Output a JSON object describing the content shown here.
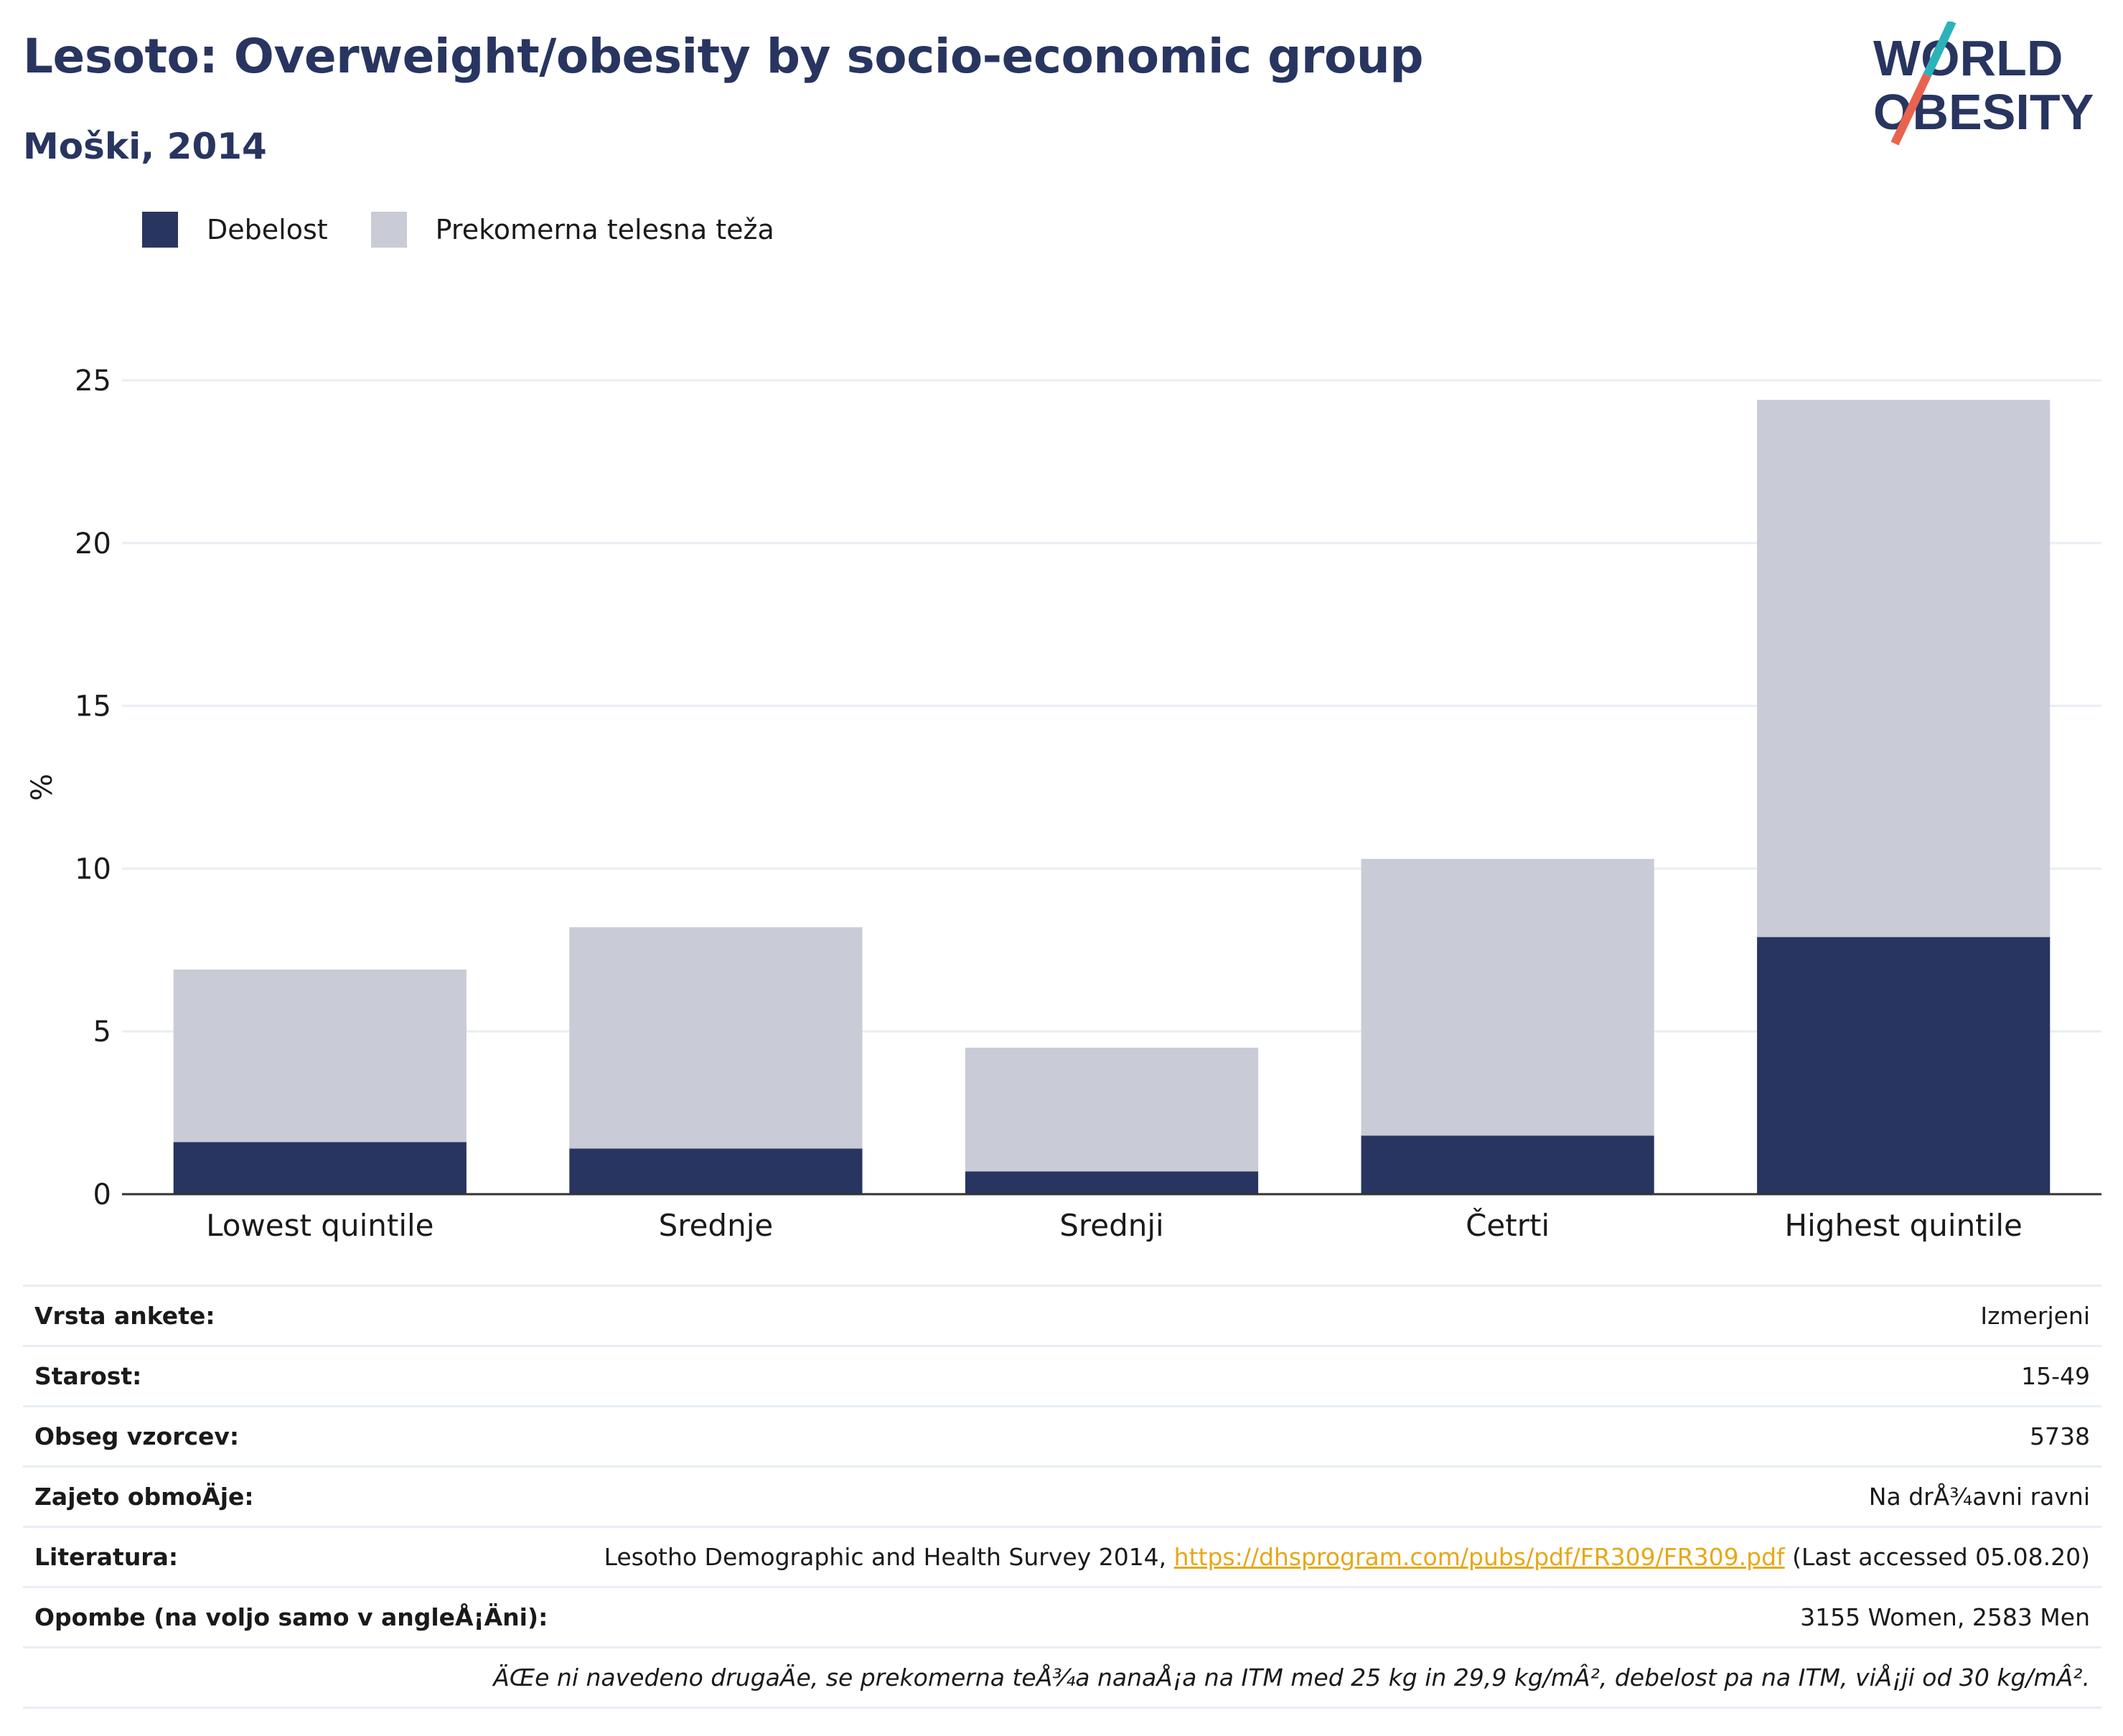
{
  "title": "Lesoto: Overweight/obesity by socio-economic group",
  "subtitle": "Moški, 2014",
  "logo": {
    "line1": "WORLD",
    "line2": "OBESITY",
    "accent_teal": "#2bb3b9",
    "accent_red": "#e8634e"
  },
  "colors": {
    "obesity": "#283560",
    "overweight": "#c9cbd6",
    "text_dark": "#283560",
    "link": "#e6a817"
  },
  "chart_data": {
    "type": "bar",
    "stacked": true,
    "categories": [
      "Lowest quintile",
      "Srednje",
      "Srednji",
      "Četrti",
      "Highest quintile"
    ],
    "series": [
      {
        "name": "Debelost",
        "values": [
          1.6,
          1.4,
          0.7,
          1.8,
          7.9
        ],
        "color": "#283560"
      },
      {
        "name": "Prekomerna telesna teža",
        "values": [
          5.3,
          6.8,
          3.8,
          8.5,
          16.5
        ],
        "color": "#c9cbd6"
      }
    ],
    "ylabel": "%",
    "ylim": [
      0,
      25
    ],
    "yticks": [
      0,
      5,
      10,
      15,
      20,
      25
    ],
    "grid": true,
    "legend": "top-left"
  },
  "meta": {
    "survey_label": "Vrsta ankete:",
    "survey_value": "Izmerjeni",
    "age_label": "Starost:",
    "age_value": "15-49",
    "sample_label": "Obseg vzorcev:",
    "sample_value": "5738",
    "area_label": "Zajeto obmoÄje:",
    "area_value": "Na drÅ¾avni ravni",
    "ref_label": "Literatura:",
    "ref_text": "Lesotho Demographic and Health Survey 2014, ",
    "ref_link": "https://dhsprogram.com/pubs/pdf/FR309/FR309.pdf",
    "ref_tail": " (Last accessed 05.08.20)",
    "notes_label": "Opombe (na voljo samo v angleÅ¡Äni):",
    "notes_value": "3155 Women, 2583 Men",
    "footnote": "ÄŒe ni navedeno drugaÄe, se prekomerna teÅ¾a nanaÅ¡a na ITM med 25 kg in 29,9 kg/mÂ², debelost pa na ITM, viÅ¡ji od 30 kg/mÂ²."
  }
}
